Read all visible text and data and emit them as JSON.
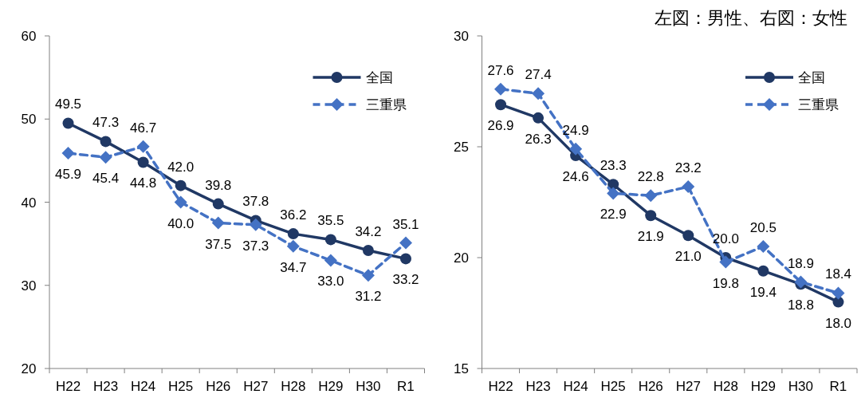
{
  "chart_data": [
    {
      "type": "line",
      "categories": [
        "H22",
        "H23",
        "H24",
        "H25",
        "H26",
        "H27",
        "H28",
        "H29",
        "H30",
        "R1"
      ],
      "ylim": [
        20,
        60
      ],
      "yticks": [
        20,
        30,
        40,
        50,
        60
      ],
      "legend": "top right",
      "grid": false,
      "series": [
        {
          "name": "全国",
          "color": "#203864",
          "marker": "circle",
          "line_style": "solid",
          "values": [
            49.5,
            47.3,
            44.8,
            42.0,
            39.8,
            37.8,
            36.2,
            35.5,
            34.2,
            33.2
          ],
          "value_labels": [
            "49.5",
            "47.3",
            "44.8",
            "42.0",
            "39.8",
            "37.8",
            "36.2",
            "35.5",
            "34.2",
            "33.2"
          ]
        },
        {
          "name": "三重県",
          "color": "#4472c4",
          "marker": "diamond",
          "line_style": "dashed",
          "values": [
            45.9,
            45.4,
            46.7,
            40.0,
            37.5,
            37.3,
            34.7,
            33.0,
            31.2,
            35.1
          ],
          "value_labels": [
            "45.9",
            "45.4",
            "46.7",
            "40.0",
            "37.5",
            "37.3",
            "34.7",
            "33.0",
            "31.2",
            "35.1"
          ]
        }
      ]
    },
    {
      "type": "line",
      "title": "左図：男性、右図：女性",
      "categories": [
        "H22",
        "H23",
        "H24",
        "H25",
        "H26",
        "H27",
        "H28",
        "H29",
        "H30",
        "R1"
      ],
      "ylim": [
        15,
        30
      ],
      "yticks": [
        15,
        20,
        25,
        30
      ],
      "legend": "top right",
      "grid": false,
      "series": [
        {
          "name": "全国",
          "color": "#203864",
          "marker": "circle",
          "line_style": "solid",
          "values": [
            26.9,
            26.3,
            24.6,
            23.3,
            21.9,
            21.0,
            20.0,
            19.4,
            18.8,
            18.0
          ],
          "value_labels": [
            "26.9",
            "26.3",
            "24.6",
            "23.3",
            "21.9",
            "21.0",
            "20.0",
            "19.4",
            "18.8",
            "18.0"
          ]
        },
        {
          "name": "三重県",
          "color": "#4472c4",
          "marker": "diamond",
          "line_style": "dashed",
          "values": [
            27.6,
            27.4,
            24.9,
            22.9,
            22.8,
            23.2,
            19.8,
            20.5,
            18.9,
            18.4
          ],
          "value_labels": [
            "27.6",
            "27.4",
            "24.9",
            "22.9",
            "22.8",
            "23.2",
            "19.8",
            "20.5",
            "18.9",
            "18.4"
          ]
        }
      ]
    }
  ]
}
